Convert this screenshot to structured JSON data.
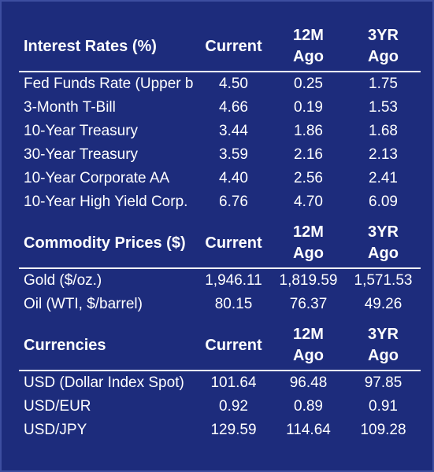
{
  "sections": [
    {
      "title": "Interest Rates (%)",
      "col_current": "Current",
      "col_12m": "12M Ago",
      "col_12m_a": "12M",
      "col_12m_b": "Ago",
      "col_3yr_a": "3YR",
      "col_3yr_b": "Ago",
      "rows": [
        {
          "label": "Fed Funds Rate (Upper b",
          "current": "4.50",
          "m12": "0.25",
          "yr3": "1.75"
        },
        {
          "label": "3-Month T-Bill",
          "current": "4.66",
          "m12": "0.19",
          "yr3": "1.53"
        },
        {
          "label": "10-Year Treasury",
          "current": "3.44",
          "m12": "1.86",
          "yr3": "1.68"
        },
        {
          "label": "30-Year Treasury",
          "current": "3.59",
          "m12": "2.16",
          "yr3": "2.13"
        },
        {
          "label": "10-Year Corporate AA",
          "current": "4.40",
          "m12": "2.56",
          "yr3": "2.41"
        },
        {
          "label": "10-Year High Yield Corp.",
          "current": "6.76",
          "m12": "4.70",
          "yr3": "6.09"
        }
      ]
    },
    {
      "title": "Commodity Prices ($)",
      "col_current": "Current",
      "col_12m_a": "12M",
      "col_12m_b": "Ago",
      "col_3yr_a": "3YR",
      "col_3yr_b": "Ago",
      "rows": [
        {
          "label": "Gold    ($/oz.)",
          "current": "1,946.11",
          "m12": "1,819.59",
          "yr3": "1,571.53"
        },
        {
          "label": "Oil (WTI, $/barrel)",
          "current": "80.15",
          "m12": "76.37",
          "yr3": "49.26"
        }
      ]
    },
    {
      "title": "Currencies",
      "col_current": "Current",
      "col_12m_a": "12M",
      "col_12m_b": "Ago",
      "col_3yr_a": "3YR",
      "col_3yr_b": "Ago",
      "rows": [
        {
          "label": "USD (Dollar Index Spot)",
          "current": "101.64",
          "m12": "96.48",
          "yr3": "97.85"
        },
        {
          "label": "USD/EUR",
          "current": "0.92",
          "m12": "0.89",
          "yr3": "0.91"
        },
        {
          "label": "USD/JPY",
          "current": "129.59",
          "m12": "114.64",
          "yr3": "109.28"
        }
      ]
    }
  ],
  "colors": {
    "background": "#1d2c7c",
    "text": "#ffffff",
    "rule": "#ffffff"
  }
}
